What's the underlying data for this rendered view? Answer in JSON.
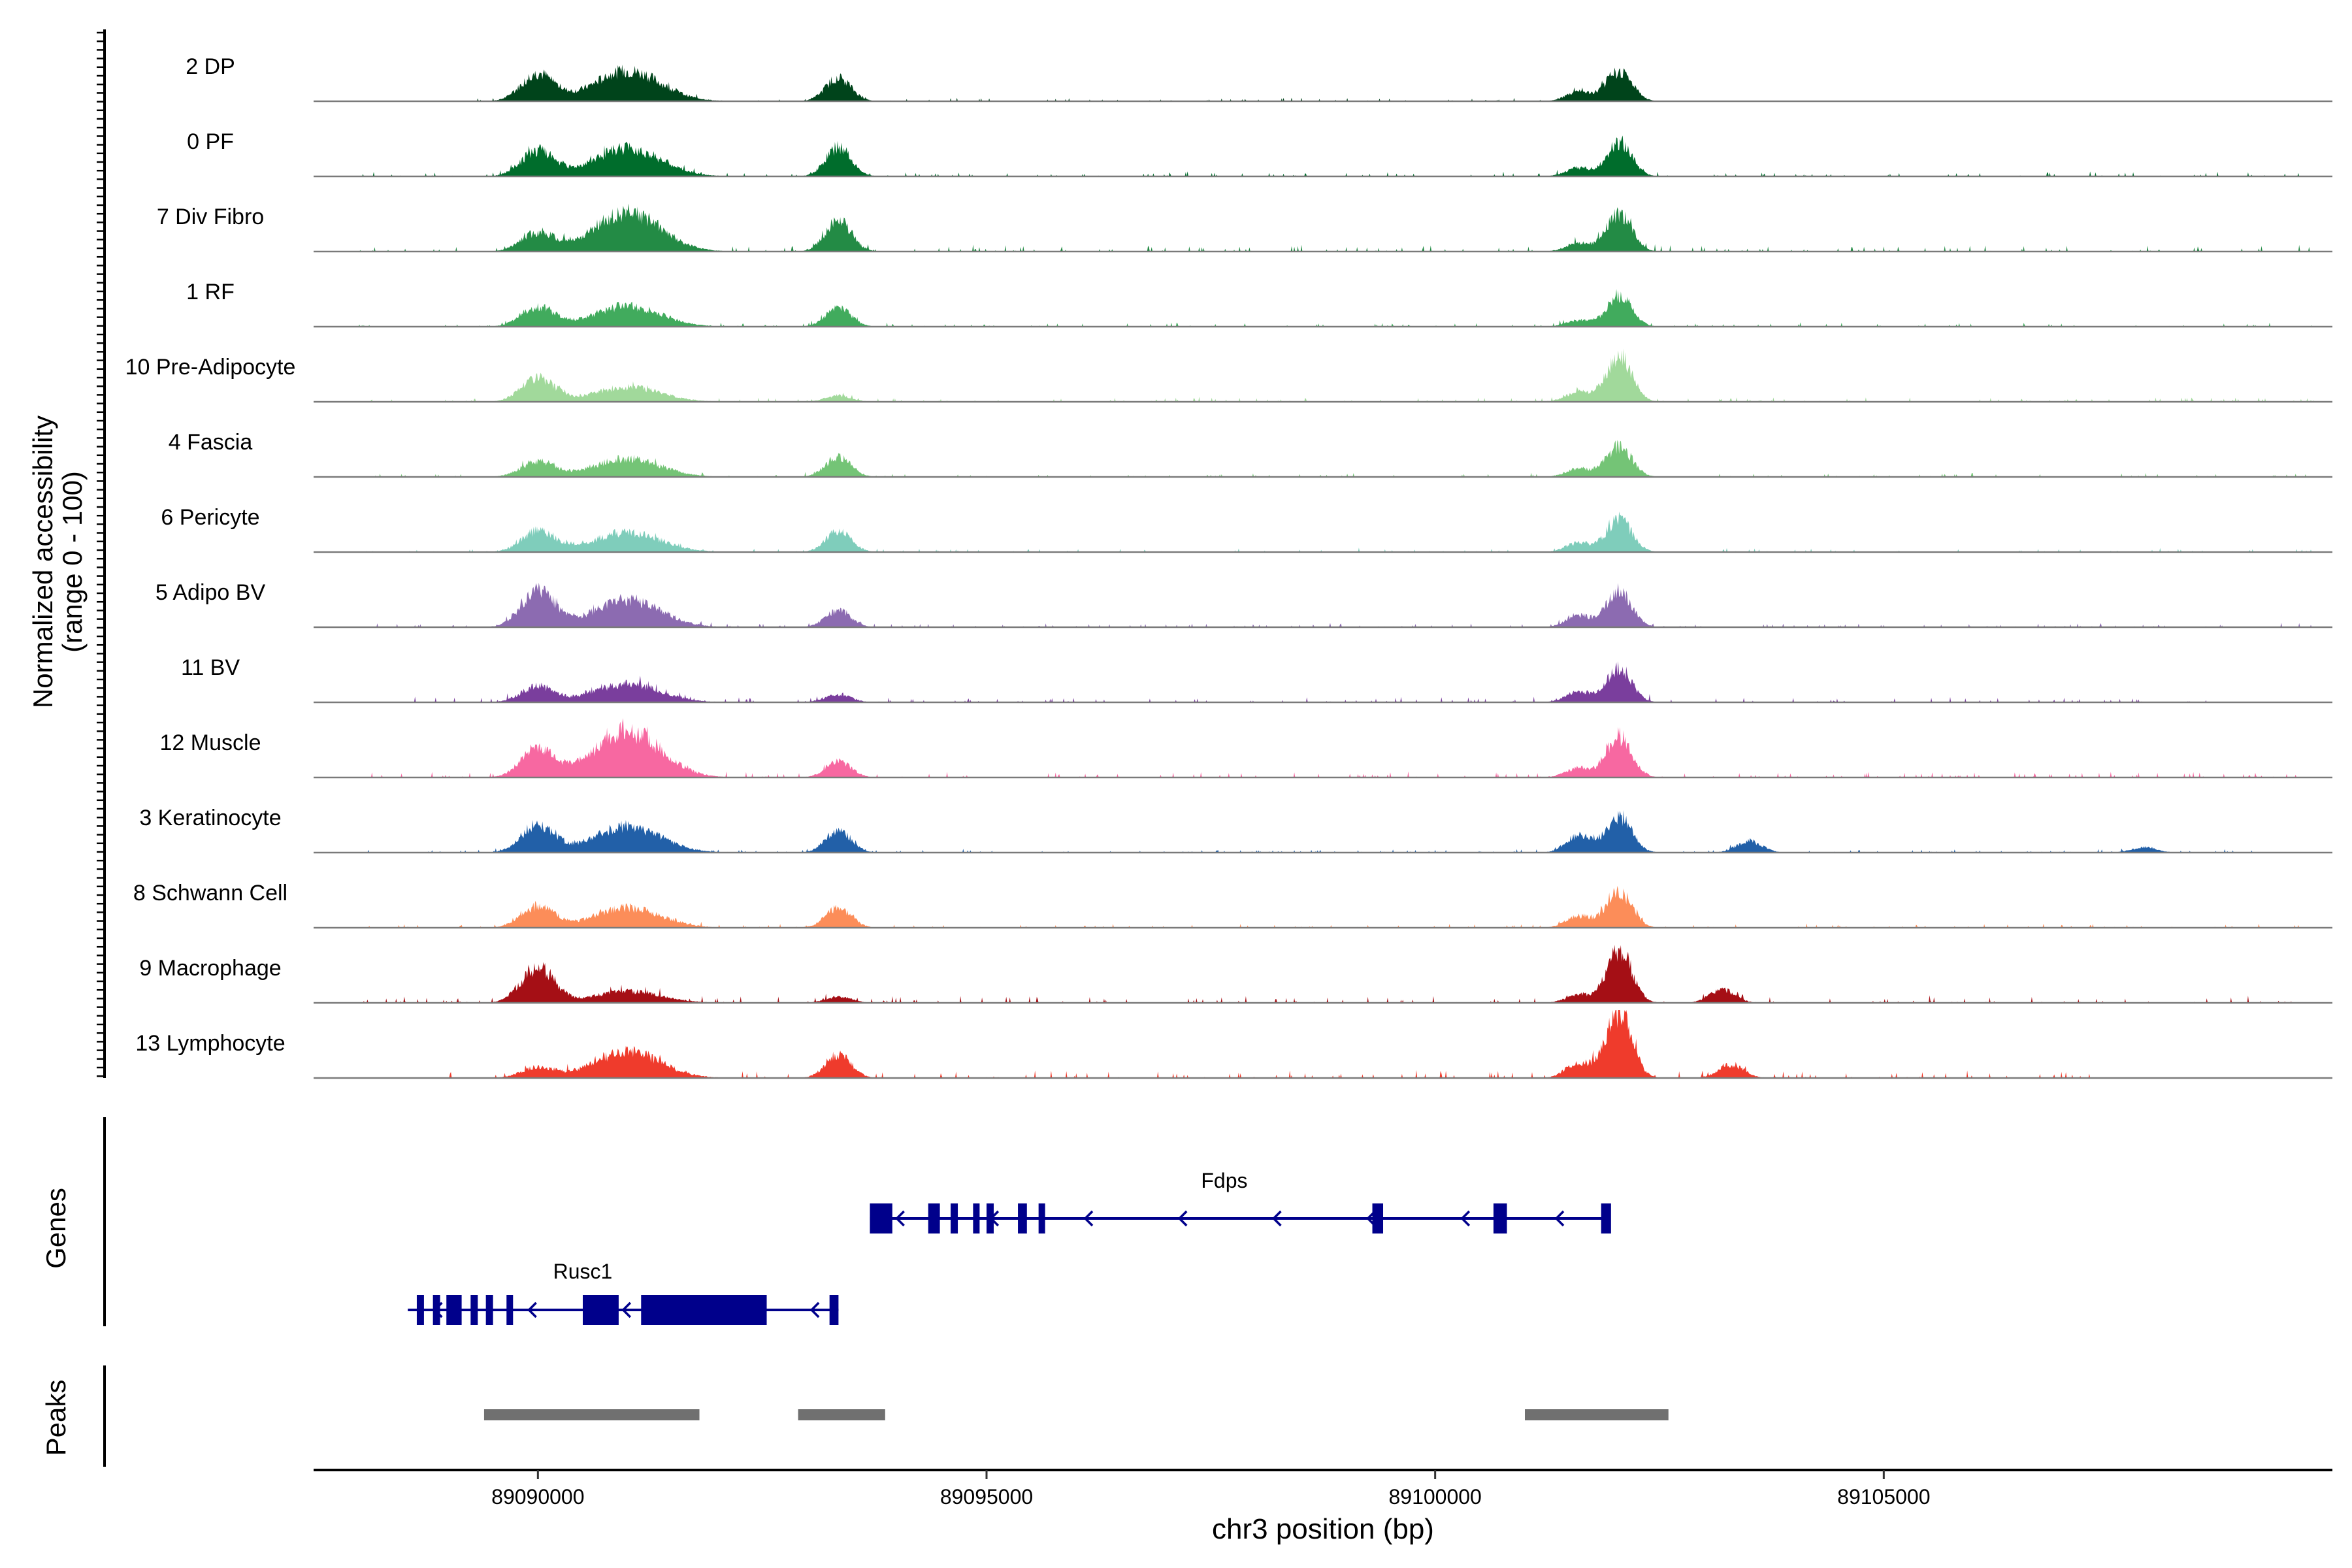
{
  "chart_data": {
    "type": "area",
    "title": "",
    "ylabel_line1": "Normalized accessibility",
    "ylabel_line2": "(range 0 - 100)",
    "xlabel": "chr3 position (bp)",
    "xlim": [
      89087500,
      89110000
    ],
    "x_ticks": [
      89090000,
      89095000,
      89100000,
      89105000
    ],
    "x_tick_labels": [
      "89090000",
      "89095000",
      "89100000",
      "89105000"
    ],
    "tracks": [
      {
        "name": "2 DP",
        "color": "#00441b",
        "peaks": [
          [
            89090000,
            52
          ],
          [
            89091000,
            58
          ],
          [
            89093350,
            45
          ],
          [
            89102050,
            58
          ],
          [
            89101600,
            18
          ]
        ],
        "noise": 6,
        "span": [
          89089300,
          89102500
        ]
      },
      {
        "name": "0 PF",
        "color": "#006d2c",
        "peaks": [
          [
            89090000,
            48
          ],
          [
            89091000,
            54
          ],
          [
            89093350,
            55
          ],
          [
            89102050,
            62
          ],
          [
            89101600,
            16
          ]
        ],
        "noise": 8,
        "span": [
          89088000,
          89109800
        ]
      },
      {
        "name": "7 Div Fibro",
        "color": "#238b45",
        "peaks": [
          [
            89090000,
            35
          ],
          [
            89091000,
            75
          ],
          [
            89093350,
            62
          ],
          [
            89102050,
            70
          ],
          [
            89101600,
            16
          ]
        ],
        "noise": 12,
        "span": [
          89088000,
          89109800
        ]
      },
      {
        "name": "1 RF",
        "color": "#41ab5d",
        "peaks": [
          [
            89090000,
            38
          ],
          [
            89091000,
            40
          ],
          [
            89093350,
            35
          ],
          [
            89102050,
            58
          ],
          [
            89101600,
            12
          ]
        ],
        "noise": 7,
        "span": [
          89088000,
          89109800
        ]
      },
      {
        "name": "10 Pre-Adipocyte",
        "color": "#a1d99b",
        "peaks": [
          [
            89090000,
            45
          ],
          [
            89091000,
            28
          ],
          [
            89093350,
            12
          ],
          [
            89102050,
            88
          ],
          [
            89101600,
            20
          ]
        ],
        "noise": 8,
        "span": [
          89088000,
          89109800
        ]
      },
      {
        "name": "4 Fascia",
        "color": "#74c476",
        "peaks": [
          [
            89090000,
            30
          ],
          [
            89091000,
            35
          ],
          [
            89093350,
            38
          ],
          [
            89102050,
            58
          ],
          [
            89101600,
            16
          ]
        ],
        "noise": 7,
        "span": [
          89088000,
          89109800
        ]
      },
      {
        "name": "6 Pericyte",
        "color": "#7fcdbb",
        "peaks": [
          [
            89090000,
            40
          ],
          [
            89091000,
            38
          ],
          [
            89093350,
            40
          ],
          [
            89102050,
            62
          ],
          [
            89101600,
            18
          ]
        ],
        "noise": 7,
        "span": [
          89088000,
          89109800
        ]
      },
      {
        "name": "5 Adipo BV",
        "color": "#8c6bb1",
        "peaks": [
          [
            89090000,
            70
          ],
          [
            89091000,
            52
          ],
          [
            89093350,
            32
          ],
          [
            89102050,
            68
          ],
          [
            89101600,
            22
          ]
        ],
        "noise": 7,
        "span": [
          89088000,
          89109800
        ]
      },
      {
        "name": "11 BV",
        "color": "#7a3e9d",
        "peaks": [
          [
            89090000,
            30
          ],
          [
            89091000,
            35
          ],
          [
            89093350,
            15
          ],
          [
            89102050,
            65
          ],
          [
            89101600,
            20
          ]
        ],
        "noise": 10,
        "span": [
          89088500,
          89109000
        ]
      },
      {
        "name": "12 Muscle",
        "color": "#f768a1",
        "peaks": [
          [
            89090000,
            55
          ],
          [
            89091000,
            88
          ],
          [
            89093350,
            30
          ],
          [
            89102050,
            78
          ],
          [
            89101600,
            18
          ]
        ],
        "noise": 10,
        "span": [
          89088000,
          89109800
        ]
      },
      {
        "name": "3 Keratinocyte",
        "color": "#2260a8",
        "peaks": [
          [
            89090000,
            52
          ],
          [
            89091000,
            50
          ],
          [
            89093350,
            42
          ],
          [
            89102050,
            68
          ],
          [
            89101600,
            32
          ],
          [
            89103500,
            22
          ],
          [
            89107900,
            10
          ]
        ],
        "noise": 6,
        "span": [
          89088000,
          89109800
        ]
      },
      {
        "name": "8 Schwann Cell",
        "color": "#fc8d59",
        "peaks": [
          [
            89090000,
            40
          ],
          [
            89091000,
            38
          ],
          [
            89093350,
            38
          ],
          [
            89102050,
            68
          ],
          [
            89101600,
            22
          ]
        ],
        "noise": 7,
        "span": [
          89088000,
          89109800
        ]
      },
      {
        "name": "9 Macrophage",
        "color": "#a50f15",
        "peaks": [
          [
            89090000,
            68
          ],
          [
            89091000,
            22
          ],
          [
            89093350,
            12
          ],
          [
            89102050,
            98
          ],
          [
            89101600,
            16
          ],
          [
            89103200,
            25
          ]
        ],
        "noise": 12,
        "span": [
          89088000,
          89109800
        ]
      },
      {
        "name": "13 Lymphocyte",
        "color": "#ef3b2c",
        "peaks": [
          [
            89090000,
            20
          ],
          [
            89091000,
            50
          ],
          [
            89093350,
            45
          ],
          [
            89102050,
            128
          ],
          [
            89101600,
            30
          ],
          [
            89103300,
            25
          ]
        ],
        "noise": 14,
        "span": [
          89088800,
          89107300
        ]
      }
    ],
    "genes_label": "Genes",
    "gene_color": "#00008b",
    "genes": [
      {
        "name": "Rusc1",
        "start": 89088550,
        "end": 89093350,
        "strand": "-",
        "exons": [
          [
            89088650,
            89088730
          ],
          [
            89088830,
            89088910
          ],
          [
            89088980,
            89089150
          ],
          [
            89089250,
            89089330
          ],
          [
            89089420,
            89089500
          ],
          [
            89089650,
            89089680
          ],
          [
            89090500,
            89090900
          ],
          [
            89091150,
            89092550
          ],
          [
            89093250,
            89093350
          ]
        ]
      },
      {
        "name": "Fdps",
        "start": 89093700,
        "end": 89101950,
        "strand": "-",
        "exons": [
          [
            89093700,
            89093950
          ],
          [
            89094350,
            89094480
          ],
          [
            89094600,
            89094680
          ],
          [
            89094850,
            89094920
          ],
          [
            89095000,
            89095080
          ],
          [
            89095350,
            89095450
          ],
          [
            89095580,
            89095650
          ],
          [
            89099300,
            89099420
          ],
          [
            89100650,
            89100800
          ],
          [
            89101850,
            89101960
          ]
        ]
      }
    ],
    "peaks_label": "Peaks",
    "peak_color": "#707070",
    "peaks": [
      [
        89089400,
        89091800
      ],
      [
        89092900,
        89093870
      ],
      [
        89101000,
        89102600
      ]
    ]
  }
}
